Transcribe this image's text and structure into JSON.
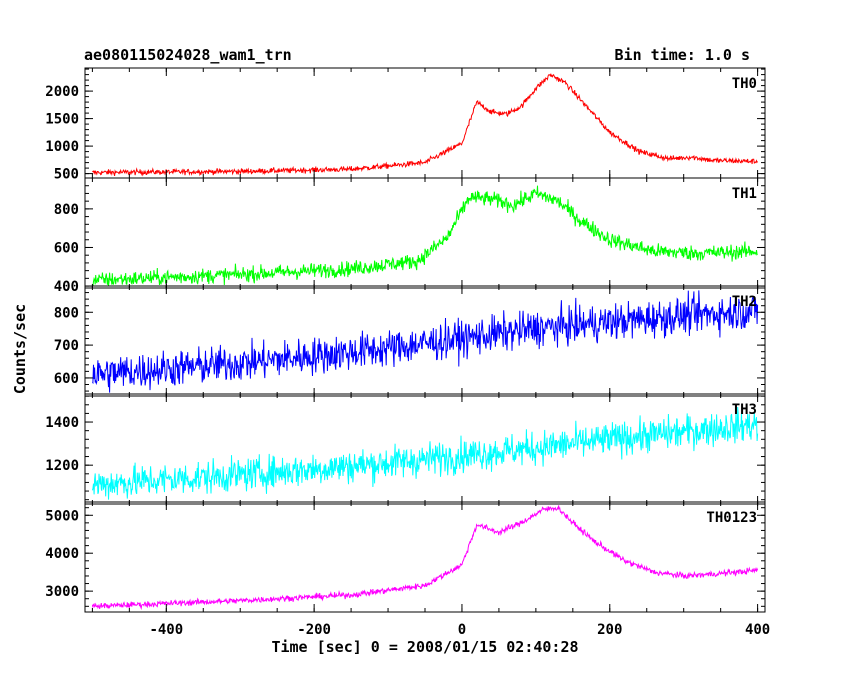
{
  "header": {
    "title": "ae080115024028_wam1_trn",
    "bin_time": "Bin time: 1.0 s"
  },
  "chart_data": {
    "type": "line",
    "xlabel": "Time [sec] 0 = 2008/01/15 02:40:28",
    "ylabel": "Counts/sec",
    "xlim": [
      -510,
      410
    ],
    "xticks": [
      -400,
      -200,
      0,
      200,
      400
    ],
    "panels": [
      {
        "name": "TH0",
        "color": "#ff0000",
        "ylim": [
          420,
          2420
        ],
        "yticks": [
          500,
          1000,
          1500,
          2000
        ],
        "noise": 35,
        "curve": [
          [
            -500,
            520
          ],
          [
            -300,
            540
          ],
          [
            -150,
            580
          ],
          [
            -50,
            700
          ],
          [
            0,
            1050
          ],
          [
            20,
            1800
          ],
          [
            40,
            1620
          ],
          [
            60,
            1580
          ],
          [
            80,
            1720
          ],
          [
            100,
            2050
          ],
          [
            120,
            2300
          ],
          [
            140,
            2150
          ],
          [
            170,
            1700
          ],
          [
            200,
            1250
          ],
          [
            240,
            900
          ],
          [
            280,
            770
          ],
          [
            310,
            800
          ],
          [
            340,
            740
          ],
          [
            400,
            720
          ]
        ]
      },
      {
        "name": "TH1",
        "color": "#00ff00",
        "ylim": [
          390,
          960
        ],
        "yticks": [
          400,
          600,
          800
        ],
        "noise": 28,
        "curve": [
          [
            -500,
            430
          ],
          [
            -300,
            460
          ],
          [
            -150,
            490
          ],
          [
            -60,
            530
          ],
          [
            -20,
            650
          ],
          [
            10,
            860
          ],
          [
            40,
            850
          ],
          [
            70,
            820
          ],
          [
            100,
            880
          ],
          [
            130,
            840
          ],
          [
            160,
            740
          ],
          [
            200,
            640
          ],
          [
            260,
            580
          ],
          [
            320,
            570
          ],
          [
            400,
            580
          ]
        ]
      },
      {
        "name": "TH2",
        "color": "#0000ff",
        "ylim": [
          545,
          880
        ],
        "yticks": [
          600,
          700,
          800
        ],
        "noise": 40,
        "curve": [
          [
            -500,
            610
          ],
          [
            -300,
            645
          ],
          [
            -100,
            690
          ],
          [
            0,
            720
          ],
          [
            100,
            750
          ],
          [
            200,
            770
          ],
          [
            300,
            790
          ],
          [
            400,
            805
          ]
        ]
      },
      {
        "name": "TH3",
        "color": "#00ffff",
        "ylim": [
          1020,
          1530
        ],
        "yticks": [
          1200,
          1400
        ],
        "noise": 55,
        "curve": [
          [
            -500,
            1110
          ],
          [
            -300,
            1155
          ],
          [
            -100,
            1210
          ],
          [
            0,
            1245
          ],
          [
            100,
            1280
          ],
          [
            200,
            1320
          ],
          [
            300,
            1355
          ],
          [
            400,
            1390
          ]
        ]
      },
      {
        "name": "TH0123",
        "color": "#ff00ff",
        "ylim": [
          2450,
          5350
        ],
        "yticks": [
          3000,
          4000,
          5000
        ],
        "noise": 55,
        "curve": [
          [
            -500,
            2600
          ],
          [
            -300,
            2750
          ],
          [
            -150,
            2900
          ],
          [
            -50,
            3150
          ],
          [
            0,
            3700
          ],
          [
            20,
            4750
          ],
          [
            50,
            4550
          ],
          [
            80,
            4800
          ],
          [
            110,
            5150
          ],
          [
            130,
            5200
          ],
          [
            150,
            4800
          ],
          [
            180,
            4300
          ],
          [
            220,
            3800
          ],
          [
            260,
            3500
          ],
          [
            300,
            3400
          ],
          [
            340,
            3450
          ],
          [
            400,
            3550
          ]
        ]
      }
    ]
  }
}
